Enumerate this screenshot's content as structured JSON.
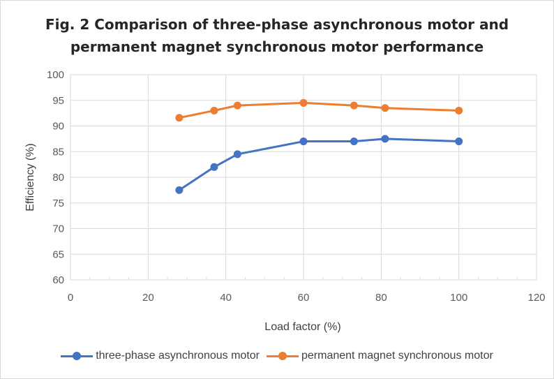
{
  "chart_data": {
    "type": "line",
    "title_lines": [
      "Fig. 2 Comparison of three-phase asynchronous motor and",
      "permanent magnet synchronous motor performance"
    ],
    "xlabel": "Load factor (%)",
    "ylabel": "Efficiency (%)",
    "xlim": [
      0,
      120
    ],
    "ylim": [
      60,
      100
    ],
    "xticks": [
      "0",
      "20",
      "40",
      "60",
      "80",
      "100",
      "120"
    ],
    "yticks": [
      "60",
      "65",
      "70",
      "75",
      "80",
      "85",
      "90",
      "95",
      "100"
    ],
    "grid": true,
    "legend_position": "bottom",
    "series": [
      {
        "name": "three-phase asynchronous motor",
        "color": "#4472c4",
        "x": [
          28,
          37,
          43,
          60,
          73,
          81,
          100
        ],
        "y": [
          77.5,
          82,
          84.5,
          87,
          87,
          87.5,
          87
        ]
      },
      {
        "name": "permanent magnet synchronous motor",
        "color": "#ed7d31",
        "x": [
          28,
          37,
          43,
          60,
          73,
          81,
          100
        ],
        "y": [
          91.6,
          93,
          94,
          94.5,
          94,
          93.5,
          93
        ]
      }
    ]
  }
}
